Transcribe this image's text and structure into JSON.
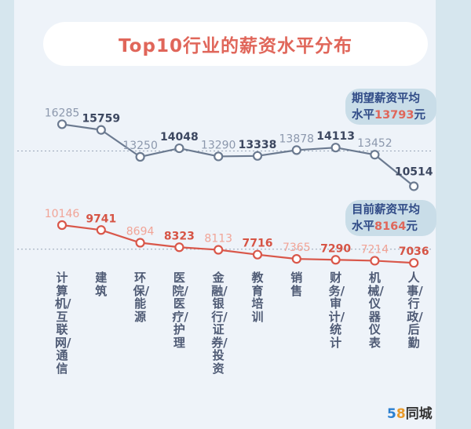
{
  "chart_data": {
    "type": "line",
    "title": "Top10行业的薪资水平分布",
    "categories": [
      "计算机/互联网/通信",
      "建筑",
      "环保/能源",
      "医院/医疗/护理",
      "金融/银行/证券/投资",
      "教育培训",
      "销售",
      "财务/审计/统计",
      "机械/仪器仪表",
      "人事/行政/后勤"
    ],
    "series": [
      {
        "name": "期望薪资",
        "color": "#6b7a90",
        "values": [
          16285,
          15759,
          13250,
          14048,
          13290,
          13338,
          13878,
          14113,
          13452,
          10514
        ],
        "average": 13793,
        "average_label_line1": "期望薪资平均",
        "average_label_prefix": "水平",
        "average_value": "13793",
        "average_unit": "元"
      },
      {
        "name": "目前薪资",
        "color": "#d9574a",
        "values": [
          10146,
          9741,
          8694,
          8323,
          8113,
          7716,
          7365,
          7290,
          7214,
          7036
        ],
        "average": 8164,
        "average_label_line1": "目前薪资平均",
        "average_label_prefix": "水平",
        "average_value": "8164",
        "average_unit": "元"
      }
    ],
    "grid": false,
    "average_lines": "dotted"
  },
  "colors": {
    "title": "#e0665a",
    "label_dark_top": "#3c4760",
    "label_light_top": "#8c98ad",
    "label_dark_bottom": "#d65445",
    "label_light_bottom": "#f1a497"
  },
  "logo": {
    "num5": "5",
    "num8": "8",
    "text": "同城"
  }
}
